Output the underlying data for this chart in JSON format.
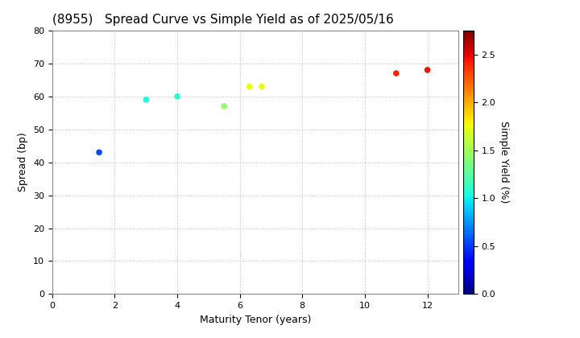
{
  "title": "(8955)   Spread Curve vs Simple Yield as of 2025/05/16",
  "xlabel": "Maturity Tenor (years)",
  "ylabel": "Spread (bp)",
  "colorbar_label": "Simple Yield (%)",
  "xlim": [
    0,
    13
  ],
  "ylim": [
    0,
    80
  ],
  "xticks": [
    0,
    2,
    4,
    6,
    8,
    10,
    12
  ],
  "yticks": [
    0,
    10,
    20,
    30,
    40,
    50,
    60,
    70,
    80
  ],
  "scatter_x": [
    1.5,
    3.0,
    4.0,
    5.5,
    6.3,
    6.7,
    11.0,
    12.0
  ],
  "scatter_y": [
    43,
    59,
    60,
    57,
    63,
    63,
    67,
    68
  ],
  "scatter_color": [
    0.55,
    1.05,
    1.1,
    1.45,
    1.75,
    1.75,
    2.4,
    2.45
  ],
  "color_min": 0.0,
  "color_max": 2.75,
  "cmap": "jet",
  "marker_size": 20,
  "background_color": "#ffffff",
  "grid_color": "#bbbbbb",
  "title_fontsize": 11,
  "label_fontsize": 9,
  "tick_fontsize": 8,
  "colorbar_tick_fontsize": 8,
  "colorbar_label_fontsize": 9
}
